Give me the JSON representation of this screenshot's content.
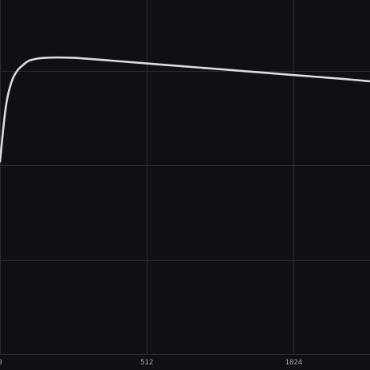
{
  "chart_data": {
    "type": "line",
    "title": "",
    "xlabel": "",
    "ylabel": "",
    "background": "#0f1014",
    "line_color": "#dcdcdc",
    "grid_color": "#2a2c33",
    "grid": true,
    "legend": "none",
    "xlim": [
      0,
      1290
    ],
    "ylim": [
      0,
      1.25
    ],
    "x_ticks": [
      0,
      512,
      1024
    ],
    "x_tick_labels": [
      "0",
      "512",
      "1024"
    ],
    "y_gridlines": [
      0,
      0.333,
      0.667,
      1.0
    ],
    "series": [
      {
        "x": [
          0,
          20,
          40,
          60,
          80,
          100,
          130,
          160,
          200,
          250,
          300,
          400,
          500,
          600,
          700,
          800,
          900,
          1000,
          1100,
          1200,
          1290
        ],
        "y": [
          0.68,
          0.87,
          0.96,
          1.0,
          1.02,
          1.035,
          1.043,
          1.046,
          1.047,
          1.046,
          1.043,
          1.035,
          1.027,
          1.019,
          1.011,
          1.003,
          0.995,
          0.987,
          0.979,
          0.971,
          0.963
        ]
      }
    ]
  }
}
